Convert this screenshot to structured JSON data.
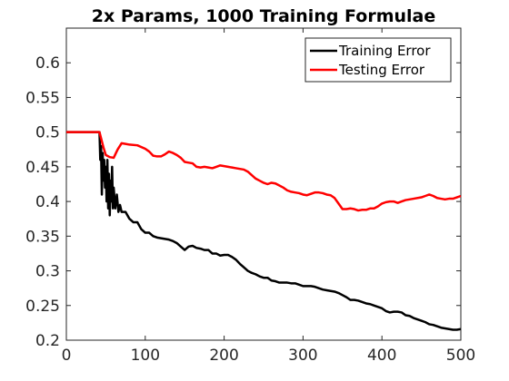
{
  "chart_data": {
    "type": "line",
    "title": "2x Params, 1000 Training Formulae",
    "xlabel": "",
    "ylabel": "",
    "xlim": [
      0,
      500
    ],
    "ylim": [
      0.2,
      0.65
    ],
    "xticks": [
      "0",
      "100",
      "200",
      "300",
      "400",
      "500"
    ],
    "yticks": [
      "0.2",
      "0.25",
      "0.3",
      "0.35",
      "0.4",
      "0.45",
      "0.5",
      "0.55",
      "0.6"
    ],
    "grid": false,
    "legend_position": "top-right",
    "series": [
      {
        "name": "Training Error",
        "color": "#000000",
        "points": [
          [
            0,
            0.5
          ],
          [
            10,
            0.5
          ],
          [
            20,
            0.5
          ],
          [
            30,
            0.5
          ],
          [
            40,
            0.5
          ],
          [
            42,
            0.5
          ],
          [
            43,
            0.46
          ],
          [
            44,
            0.48
          ],
          [
            45,
            0.41
          ],
          [
            46,
            0.47
          ],
          [
            47,
            0.43
          ],
          [
            48,
            0.46
          ],
          [
            49,
            0.42
          ],
          [
            50,
            0.45
          ],
          [
            51,
            0.4
          ],
          [
            52,
            0.46
          ],
          [
            53,
            0.39
          ],
          [
            54,
            0.44
          ],
          [
            55,
            0.38
          ],
          [
            56,
            0.43
          ],
          [
            57,
            0.4
          ],
          [
            58,
            0.45
          ],
          [
            59,
            0.39
          ],
          [
            60,
            0.42
          ],
          [
            62,
            0.39
          ],
          [
            64,
            0.41
          ],
          [
            66,
            0.385
          ],
          [
            68,
            0.395
          ],
          [
            70,
            0.385
          ],
          [
            75,
            0.385
          ],
          [
            80,
            0.375
          ],
          [
            85,
            0.37
          ],
          [
            90,
            0.37
          ],
          [
            95,
            0.36
          ],
          [
            100,
            0.355
          ],
          [
            105,
            0.355
          ],
          [
            110,
            0.35
          ],
          [
            115,
            0.348
          ],
          [
            120,
            0.347
          ],
          [
            125,
            0.346
          ],
          [
            130,
            0.345
          ],
          [
            135,
            0.343
          ],
          [
            140,
            0.34
          ],
          [
            145,
            0.335
          ],
          [
            150,
            0.33
          ],
          [
            155,
            0.335
          ],
          [
            160,
            0.336
          ],
          [
            165,
            0.333
          ],
          [
            170,
            0.332
          ],
          [
            175,
            0.33
          ],
          [
            180,
            0.33
          ],
          [
            185,
            0.325
          ],
          [
            190,
            0.325
          ],
          [
            195,
            0.322
          ],
          [
            200,
            0.323
          ],
          [
            205,
            0.323
          ],
          [
            210,
            0.32
          ],
          [
            215,
            0.316
          ],
          [
            220,
            0.31
          ],
          [
            225,
            0.305
          ],
          [
            230,
            0.3
          ],
          [
            235,
            0.297
          ],
          [
            240,
            0.295
          ],
          [
            245,
            0.292
          ],
          [
            250,
            0.29
          ],
          [
            255,
            0.29
          ],
          [
            260,
            0.286
          ],
          [
            265,
            0.285
          ],
          [
            270,
            0.283
          ],
          [
            275,
            0.283
          ],
          [
            280,
            0.283
          ],
          [
            285,
            0.282
          ],
          [
            290,
            0.282
          ],
          [
            295,
            0.28
          ],
          [
            300,
            0.278
          ],
          [
            305,
            0.278
          ],
          [
            310,
            0.278
          ],
          [
            315,
            0.277
          ],
          [
            320,
            0.275
          ],
          [
            325,
            0.273
          ],
          [
            330,
            0.272
          ],
          [
            335,
            0.271
          ],
          [
            340,
            0.27
          ],
          [
            345,
            0.268
          ],
          [
            350,
            0.265
          ],
          [
            355,
            0.262
          ],
          [
            360,
            0.258
          ],
          [
            365,
            0.258
          ],
          [
            370,
            0.257
          ],
          [
            375,
            0.255
          ],
          [
            380,
            0.253
          ],
          [
            385,
            0.252
          ],
          [
            390,
            0.25
          ],
          [
            395,
            0.248
          ],
          [
            400,
            0.246
          ],
          [
            405,
            0.242
          ],
          [
            410,
            0.24
          ],
          [
            415,
            0.241
          ],
          [
            420,
            0.241
          ],
          [
            425,
            0.24
          ],
          [
            430,
            0.236
          ],
          [
            435,
            0.235
          ],
          [
            440,
            0.232
          ],
          [
            445,
            0.23
          ],
          [
            450,
            0.228
          ],
          [
            455,
            0.226
          ],
          [
            460,
            0.223
          ],
          [
            465,
            0.222
          ],
          [
            470,
            0.22
          ],
          [
            475,
            0.218
          ],
          [
            480,
            0.217
          ],
          [
            485,
            0.216
          ],
          [
            490,
            0.215
          ],
          [
            495,
            0.215
          ],
          [
            500,
            0.216
          ]
        ]
      },
      {
        "name": "Testing Error",
        "color": "#ff0000",
        "points": [
          [
            0,
            0.5
          ],
          [
            40,
            0.5
          ],
          [
            42,
            0.5
          ],
          [
            47,
            0.478
          ],
          [
            50,
            0.467
          ],
          [
            55,
            0.464
          ],
          [
            60,
            0.463
          ],
          [
            65,
            0.475
          ],
          [
            70,
            0.484
          ],
          [
            75,
            0.483
          ],
          [
            80,
            0.482
          ],
          [
            90,
            0.481
          ],
          [
            100,
            0.476
          ],
          [
            105,
            0.472
          ],
          [
            110,
            0.466
          ],
          [
            115,
            0.465
          ],
          [
            120,
            0.465
          ],
          [
            125,
            0.468
          ],
          [
            130,
            0.472
          ],
          [
            135,
            0.47
          ],
          [
            140,
            0.467
          ],
          [
            145,
            0.463
          ],
          [
            150,
            0.457
          ],
          [
            155,
            0.456
          ],
          [
            160,
            0.455
          ],
          [
            165,
            0.45
          ],
          [
            170,
            0.449
          ],
          [
            175,
            0.45
          ],
          [
            180,
            0.449
          ],
          [
            185,
            0.448
          ],
          [
            190,
            0.45
          ],
          [
            195,
            0.452
          ],
          [
            200,
            0.451
          ],
          [
            205,
            0.45
          ],
          [
            210,
            0.449
          ],
          [
            215,
            0.448
          ],
          [
            220,
            0.447
          ],
          [
            225,
            0.446
          ],
          [
            230,
            0.443
          ],
          [
            235,
            0.438
          ],
          [
            240,
            0.433
          ],
          [
            245,
            0.43
          ],
          [
            250,
            0.427
          ],
          [
            255,
            0.425
          ],
          [
            260,
            0.427
          ],
          [
            265,
            0.426
          ],
          [
            270,
            0.423
          ],
          [
            275,
            0.42
          ],
          [
            280,
            0.416
          ],
          [
            285,
            0.414
          ],
          [
            290,
            0.413
          ],
          [
            295,
            0.412
          ],
          [
            300,
            0.41
          ],
          [
            305,
            0.409
          ],
          [
            310,
            0.411
          ],
          [
            315,
            0.413
          ],
          [
            320,
            0.413
          ],
          [
            325,
            0.412
          ],
          [
            330,
            0.41
          ],
          [
            335,
            0.409
          ],
          [
            340,
            0.405
          ],
          [
            345,
            0.397
          ],
          [
            350,
            0.389
          ],
          [
            355,
            0.389
          ],
          [
            360,
            0.39
          ],
          [
            365,
            0.389
          ],
          [
            370,
            0.387
          ],
          [
            375,
            0.388
          ],
          [
            380,
            0.388
          ],
          [
            385,
            0.39
          ],
          [
            390,
            0.39
          ],
          [
            395,
            0.393
          ],
          [
            400,
            0.397
          ],
          [
            405,
            0.399
          ],
          [
            410,
            0.4
          ],
          [
            415,
            0.4
          ],
          [
            420,
            0.398
          ],
          [
            425,
            0.4
          ],
          [
            430,
            0.402
          ],
          [
            440,
            0.404
          ],
          [
            450,
            0.406
          ],
          [
            455,
            0.408
          ],
          [
            460,
            0.41
          ],
          [
            465,
            0.408
          ],
          [
            470,
            0.405
          ],
          [
            475,
            0.404
          ],
          [
            480,
            0.403
          ],
          [
            485,
            0.404
          ],
          [
            490,
            0.404
          ],
          [
            495,
            0.406
          ],
          [
            500,
            0.408
          ]
        ]
      }
    ]
  }
}
